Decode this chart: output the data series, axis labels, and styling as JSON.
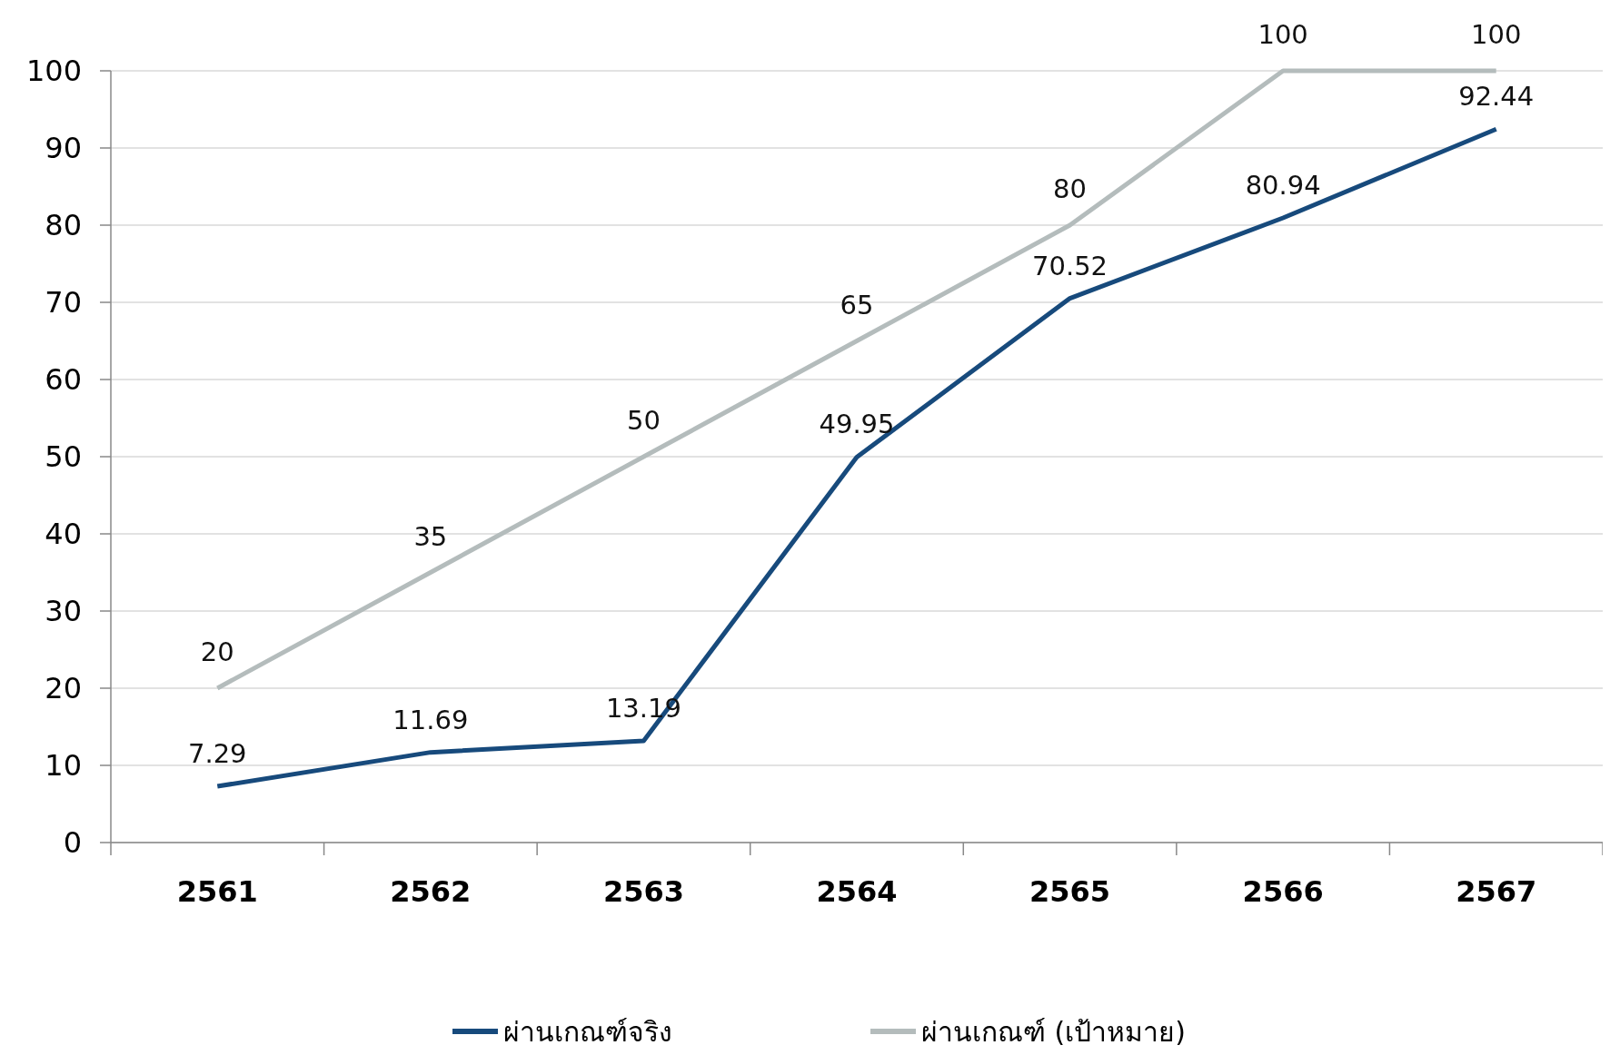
{
  "chart_data": {
    "type": "line",
    "categories": [
      "2561",
      "2562",
      "2563",
      "2564",
      "2565",
      "2566",
      "2567"
    ],
    "series": [
      {
        "name": "ผ่านเกณฑ์จริง",
        "color": "#174a7c",
        "values": [
          7.29,
          11.69,
          13.19,
          49.95,
          70.52,
          80.94,
          92.44
        ]
      },
      {
        "name": "ผ่านเกณฑ์ (เป้าหมาย)",
        "color": "#b4bcbc",
        "values": [
          20,
          35,
          50,
          65,
          80,
          100,
          100
        ]
      }
    ],
    "ylim": [
      0,
      100
    ],
    "yticks": [
      0,
      10,
      20,
      30,
      40,
      50,
      60,
      70,
      80,
      90,
      100
    ],
    "grid": "y",
    "legend": "bottom",
    "data_labels": true,
    "marker": "none",
    "line_style": "solid"
  }
}
